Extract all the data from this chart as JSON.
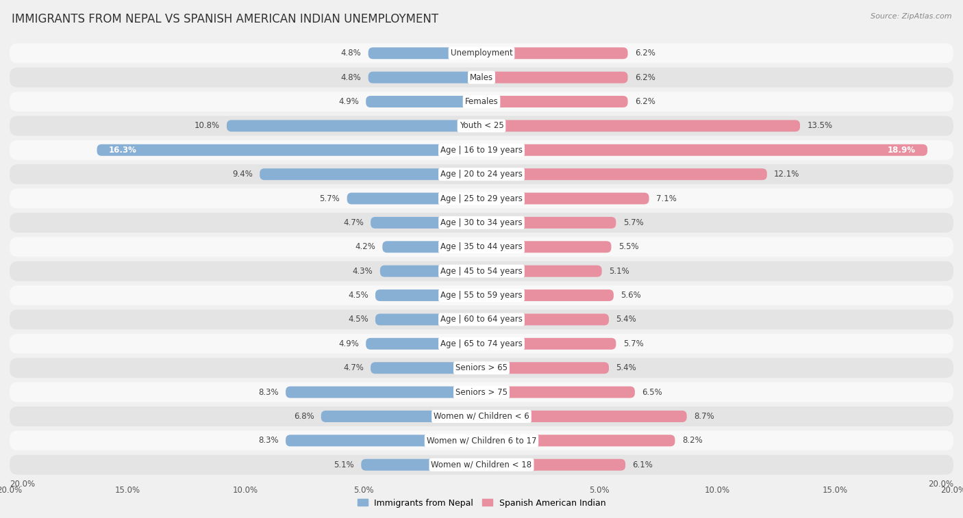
{
  "title": "IMMIGRANTS FROM NEPAL VS SPANISH AMERICAN INDIAN UNEMPLOYMENT",
  "source": "Source: ZipAtlas.com",
  "categories": [
    "Unemployment",
    "Males",
    "Females",
    "Youth < 25",
    "Age | 16 to 19 years",
    "Age | 20 to 24 years",
    "Age | 25 to 29 years",
    "Age | 30 to 34 years",
    "Age | 35 to 44 years",
    "Age | 45 to 54 years",
    "Age | 55 to 59 years",
    "Age | 60 to 64 years",
    "Age | 65 to 74 years",
    "Seniors > 65",
    "Seniors > 75",
    "Women w/ Children < 6",
    "Women w/ Children 6 to 17",
    "Women w/ Children < 18"
  ],
  "nepal_values": [
    4.8,
    4.8,
    4.9,
    10.8,
    16.3,
    9.4,
    5.7,
    4.7,
    4.2,
    4.3,
    4.5,
    4.5,
    4.9,
    4.7,
    8.3,
    6.8,
    8.3,
    5.1
  ],
  "spanish_values": [
    6.2,
    6.2,
    6.2,
    13.5,
    18.9,
    12.1,
    7.1,
    5.7,
    5.5,
    5.1,
    5.6,
    5.4,
    5.7,
    5.4,
    6.5,
    8.7,
    8.2,
    6.1
  ],
  "nepal_color": "#88afd4",
  "spanish_color": "#e8909f",
  "nepal_label": "Immigrants from Nepal",
  "spanish_label": "Spanish American Indian",
  "axis_limit": 20.0,
  "bg_color": "#f0f0f0",
  "row_color_light": "#f8f8f8",
  "row_color_dark": "#e4e4e4",
  "title_fontsize": 12,
  "label_fontsize": 8.5,
  "value_fontsize": 8.5
}
